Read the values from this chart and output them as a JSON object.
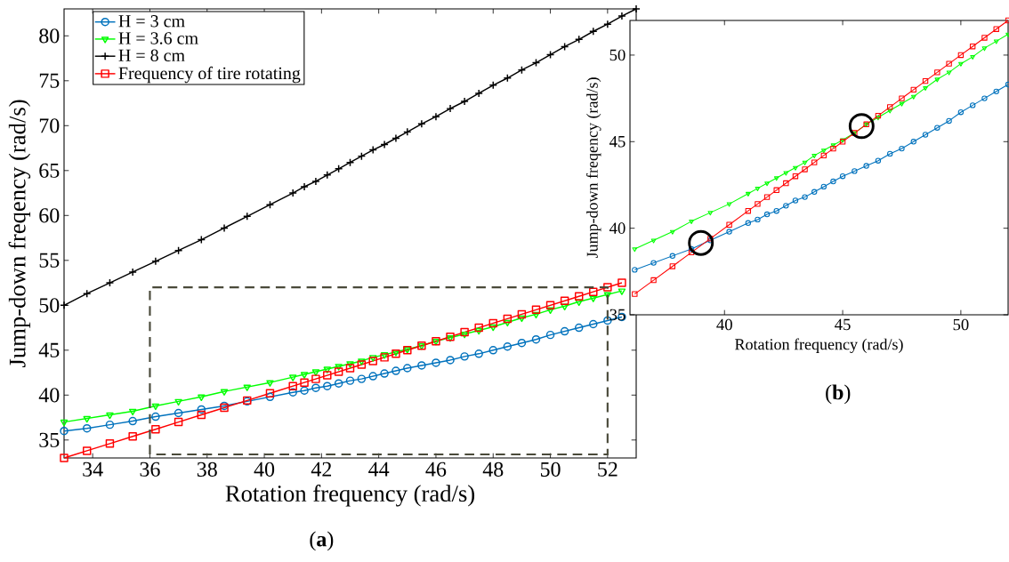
{
  "chart_data": [
    {
      "type": "line",
      "xlabel": "Rotation frequency (rad/s)",
      "ylabel": "Jump-down freqency (rad/s)",
      "annotations": [
        "(**a**)"
      ],
      "xlim": [
        33,
        53
      ],
      "ylim": [
        33,
        83
      ],
      "xticks": [
        34,
        36,
        38,
        40,
        42,
        44,
        46,
        48,
        50,
        52
      ],
      "yticks": [
        35,
        40,
        45,
        50,
        55,
        60,
        65,
        70,
        75,
        80
      ],
      "legend": "top left",
      "x": [
        33,
        33.8,
        34.6,
        35.4,
        36.2,
        37,
        37.8,
        38.6,
        39.4,
        40.2,
        41,
        41.4,
        41.8,
        42.2,
        42.6,
        43,
        43.4,
        43.8,
        44.2,
        44.6,
        45,
        45.5,
        46,
        46.5,
        47,
        47.5,
        48,
        48.5,
        49,
        49.5,
        50,
        50.5,
        51,
        51.5,
        52,
        52.5,
        53
      ],
      "series": [
        {
          "name": "H = 3 cm",
          "color": "#0072bd",
          "marker": "circle",
          "values": [
            36.0,
            36.3,
            36.7,
            37.1,
            37.6,
            38.0,
            38.4,
            38.8,
            39.3,
            39.8,
            40.3,
            40.5,
            40.8,
            41.0,
            41.3,
            41.6,
            41.8,
            42.1,
            42.4,
            42.7,
            43.0,
            43.3,
            43.6,
            43.9,
            44.3,
            44.6,
            45.0,
            45.4,
            45.8,
            46.2,
            46.7,
            47.1,
            47.5,
            47.9,
            48.3,
            48.7,
            null
          ]
        },
        {
          "name": "H = 3.6 cm",
          "color": "#00ff00",
          "marker": "triangle",
          "values": [
            37.0,
            37.4,
            37.8,
            38.2,
            38.8,
            39.3,
            39.8,
            40.4,
            40.9,
            41.4,
            42.0,
            42.3,
            42.6,
            42.9,
            43.2,
            43.5,
            43.8,
            44.2,
            44.5,
            44.8,
            45.1,
            45.5,
            46.0,
            46.4,
            46.8,
            47.2,
            47.6,
            48.1,
            48.6,
            49.0,
            49.5,
            49.9,
            50.4,
            50.8,
            51.2,
            51.6,
            null
          ]
        },
        {
          "name": "H = 8 cm",
          "color": "#000000",
          "marker": "cross",
          "values": [
            50.0,
            51.3,
            52.5,
            53.7,
            54.9,
            56.1,
            57.3,
            58.6,
            59.9,
            61.2,
            62.5,
            63.2,
            63.8,
            64.5,
            65.2,
            65.9,
            66.6,
            67.3,
            67.9,
            68.6,
            69.3,
            70.2,
            71.0,
            71.9,
            72.7,
            73.6,
            74.5,
            75.3,
            76.2,
            77.0,
            77.9,
            78.8,
            79.6,
            80.5,
            81.3,
            82.2,
            83.0
          ]
        },
        {
          "name": "Frequency of tire rotating",
          "color": "#ff0000",
          "marker": "square",
          "values": [
            33,
            33.8,
            34.6,
            35.4,
            36.2,
            37,
            37.8,
            38.6,
            39.4,
            40.2,
            41,
            41.4,
            41.8,
            42.2,
            42.6,
            43,
            43.4,
            43.8,
            44.2,
            44.6,
            45,
            45.5,
            46,
            46.5,
            47,
            47.5,
            48,
            48.5,
            49,
            49.5,
            50,
            50.5,
            51,
            51.5,
            52,
            52.5,
            null
          ]
        }
      ]
    },
    {
      "type": "line",
      "xlabel": "Rotation frequency (rad/s)",
      "ylabel": "Jump-down freqency (rad/s)",
      "annotations": [
        "(**b**)"
      ],
      "xlim": [
        36,
        52
      ],
      "ylim": [
        35,
        52
      ],
      "xticks": [
        40,
        45,
        50
      ],
      "yticks": [
        35,
        40,
        45,
        50
      ],
      "x": [
        36.2,
        37,
        37.8,
        38.6,
        39.4,
        40.2,
        41,
        41.4,
        41.8,
        42.2,
        42.6,
        43,
        43.4,
        43.8,
        44.2,
        44.6,
        45,
        45.5,
        46,
        46.5,
        47,
        47.5,
        48,
        48.5,
        49,
        49.5,
        50,
        50.5,
        51,
        51.5,
        52
      ],
      "series": [
        {
          "color": "#0072bd",
          "marker": "circle",
          "values": [
            37.6,
            38.0,
            38.4,
            38.8,
            39.3,
            39.8,
            40.3,
            40.5,
            40.8,
            41.0,
            41.3,
            41.6,
            41.8,
            42.1,
            42.4,
            42.7,
            43.0,
            43.3,
            43.6,
            43.9,
            44.3,
            44.6,
            45.0,
            45.4,
            45.8,
            46.2,
            46.7,
            47.1,
            47.5,
            47.9,
            48.3
          ]
        },
        {
          "color": "#00ff00",
          "marker": "triangle",
          "values": [
            38.8,
            39.3,
            39.8,
            40.4,
            40.9,
            41.4,
            42.0,
            42.3,
            42.6,
            42.9,
            43.2,
            43.5,
            43.8,
            44.2,
            44.5,
            44.8,
            45.1,
            45.5,
            46.0,
            46.4,
            46.8,
            47.2,
            47.6,
            48.1,
            48.6,
            49.0,
            49.5,
            49.9,
            50.4,
            50.8,
            51.2
          ]
        },
        {
          "color": "#ff0000",
          "marker": "square",
          "values": [
            36.2,
            37,
            37.8,
            38.6,
            39.4,
            40.2,
            41,
            41.4,
            41.8,
            42.2,
            42.6,
            43,
            43.4,
            43.8,
            44.2,
            44.6,
            45,
            45.5,
            46,
            46.5,
            47,
            47.5,
            48,
            48.5,
            49,
            49.5,
            50,
            50.5,
            51,
            51.5,
            52
          ]
        }
      ]
    }
  ]
}
